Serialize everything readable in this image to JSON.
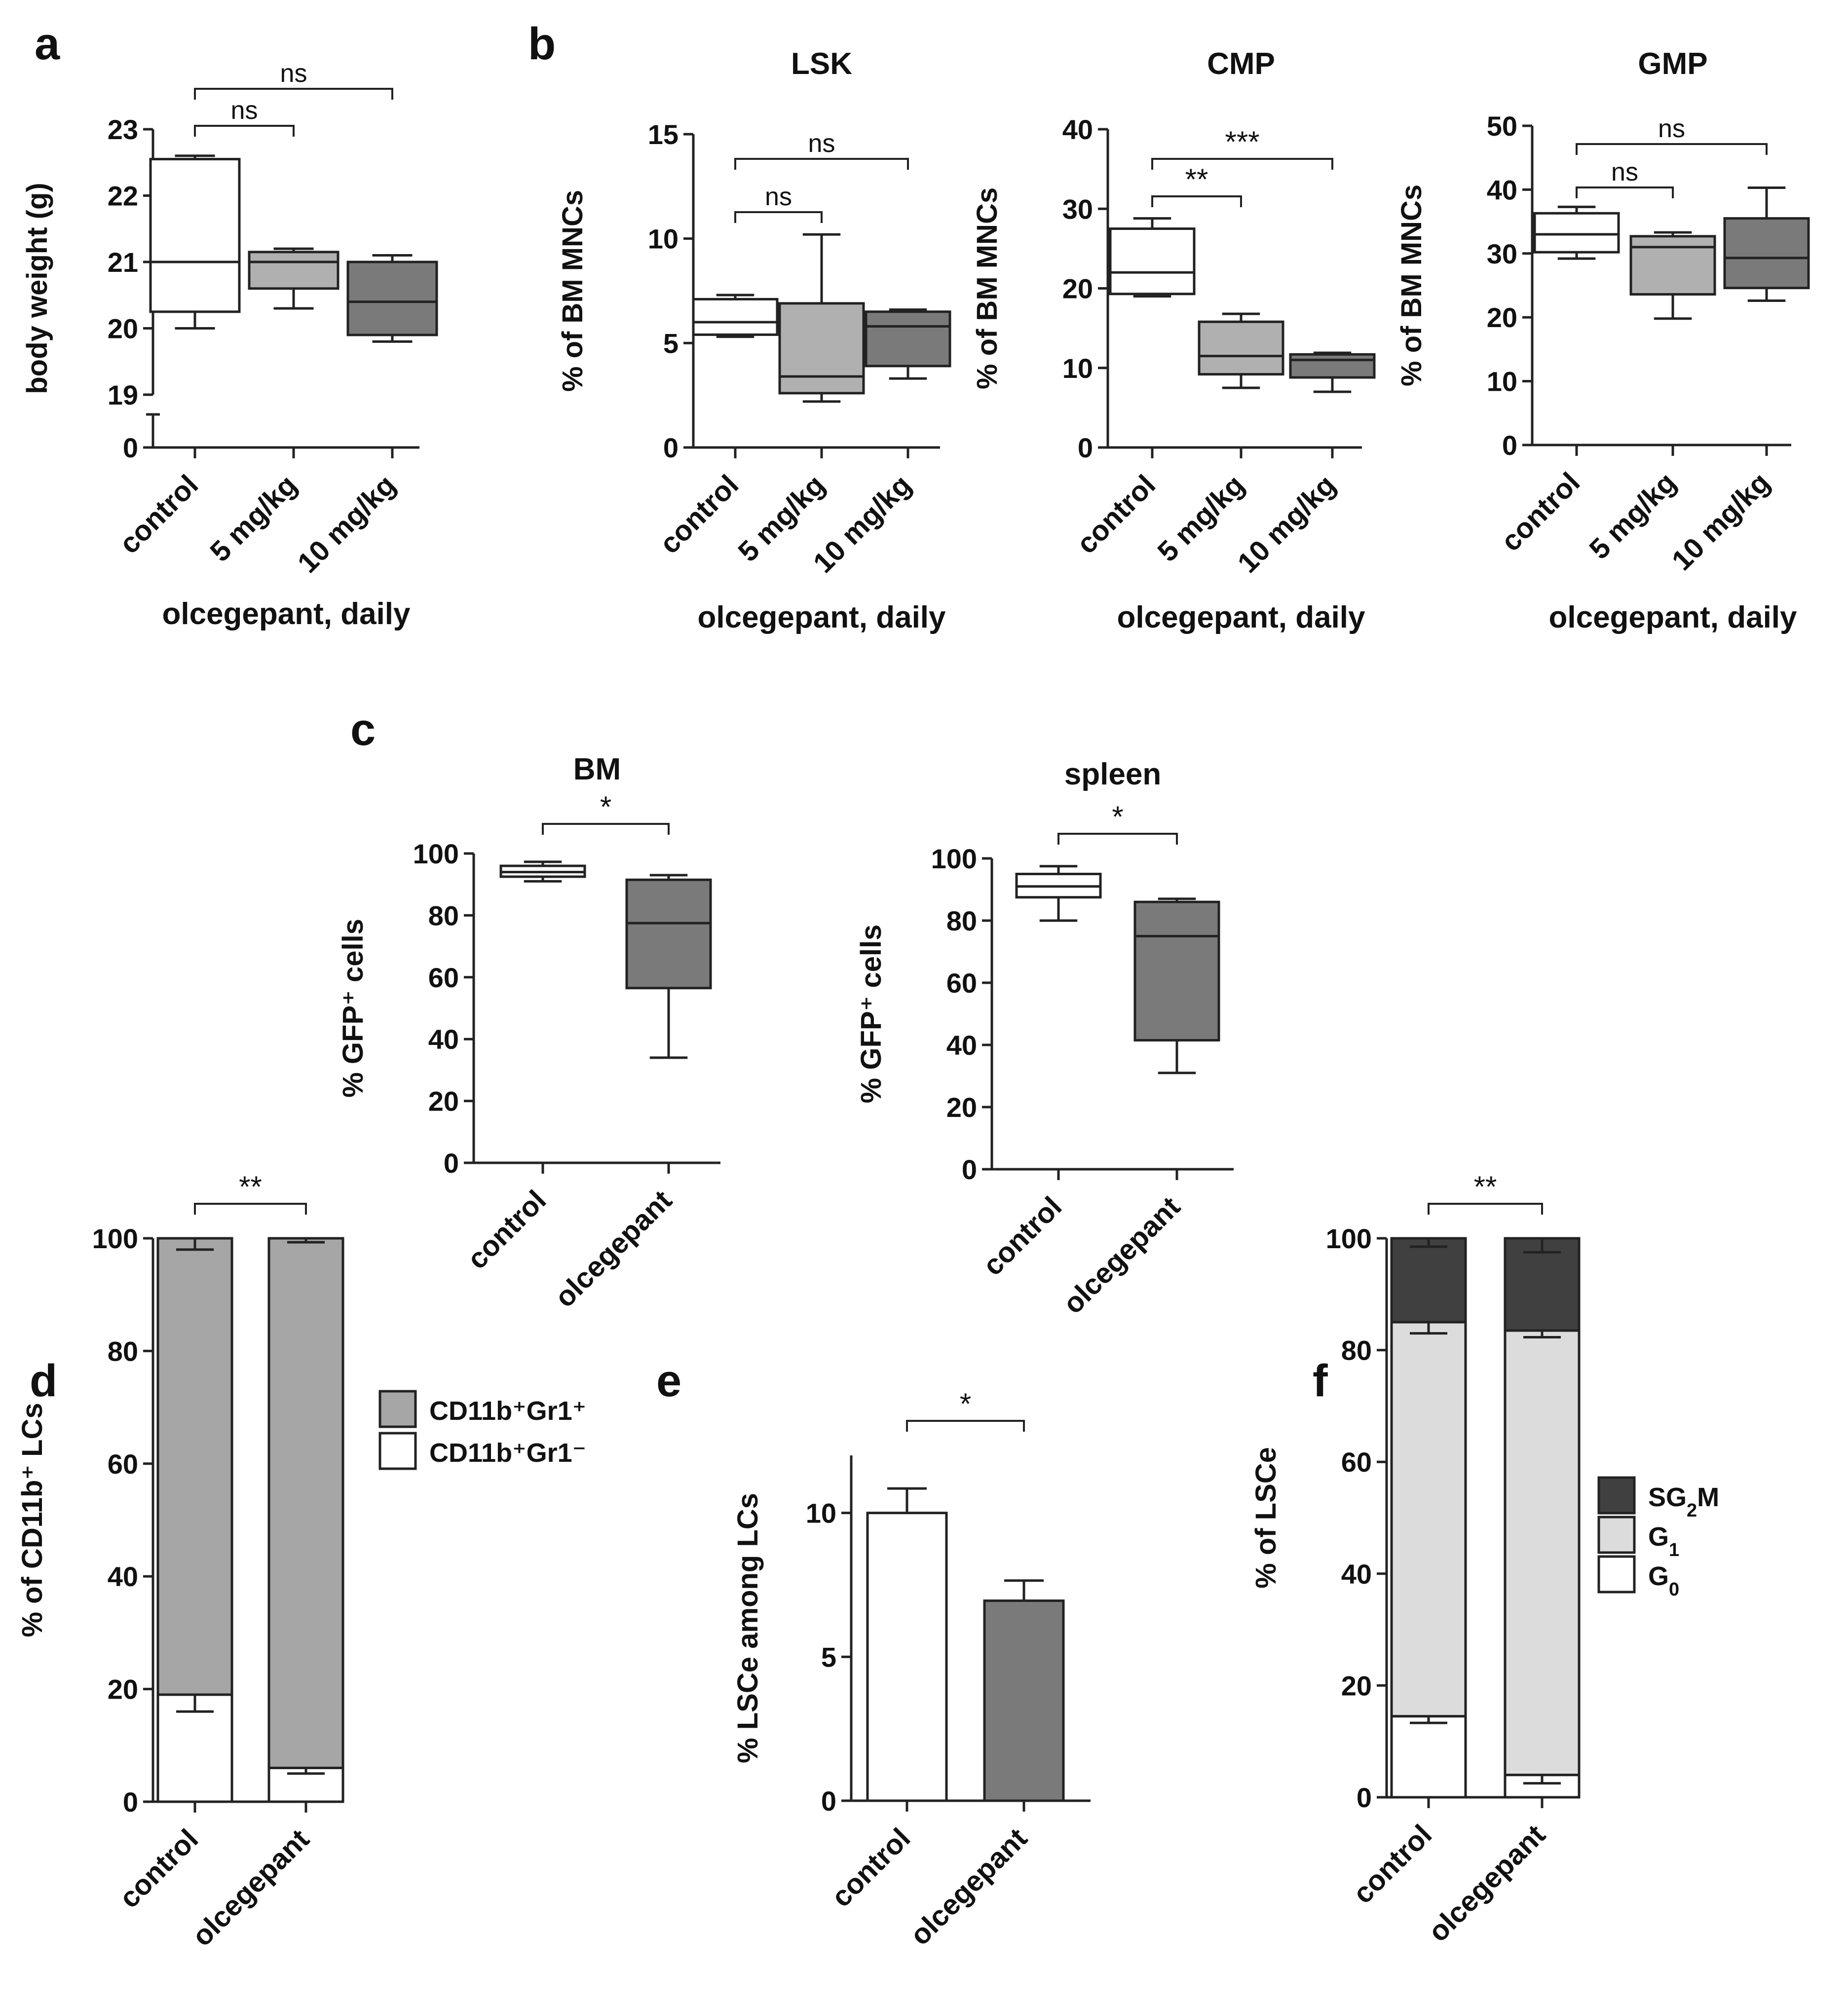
{
  "colors": {
    "control": "#ffffff",
    "dose5": "#b0b0b0",
    "dose10": "#7a7a7a",
    "olcegepant": "#7a7a7a",
    "gr1pos": "#a6a6a6",
    "gr1neg": "#ffffff",
    "sg2m": "#404040",
    "g1": "#dcdcdc",
    "g0": "#ffffff"
  },
  "chart_data": [
    {
      "panel": "a",
      "type": "box",
      "title": "",
      "ylabel": "body weight (g)",
      "xlabel": "olcegepant, daily",
      "categories": [
        "control",
        "5 mg/kg",
        "10 mg/kg"
      ],
      "axis_break": true,
      "yticks": [
        "0",
        "19",
        "20",
        "21",
        "22",
        "23"
      ],
      "ylim": [
        19,
        23
      ],
      "boxes": [
        {
          "min": 20.0,
          "q1": 20.25,
          "median": 21.0,
          "q3": 22.55,
          "max": 22.6,
          "color": "control"
        },
        {
          "min": 20.3,
          "q1": 20.6,
          "median": 21.0,
          "q3": 21.15,
          "max": 21.2,
          "color": "dose5"
        },
        {
          "min": 19.8,
          "q1": 19.9,
          "median": 20.4,
          "q3": 21.0,
          "max": 21.1,
          "color": "dose10"
        }
      ],
      "significance": [
        {
          "from": 0,
          "to": 1,
          "label": "ns"
        },
        {
          "from": 0,
          "to": 2,
          "label": "ns"
        }
      ]
    },
    {
      "panel": "b",
      "type": "box",
      "title": "LSK",
      "ylabel": "% of BM MNCs",
      "xlabel": "olcegepant, daily",
      "categories": [
        "control",
        "5 mg/kg",
        "10 mg/kg"
      ],
      "yticks": [
        "0",
        "5",
        "10",
        "15"
      ],
      "ylim": [
        0,
        15
      ],
      "boxes": [
        {
          "min": 5.3,
          "q1": 5.4,
          "median": 6.0,
          "q3": 7.1,
          "max": 7.3,
          "color": "control"
        },
        {
          "min": 2.2,
          "q1": 2.6,
          "median": 3.4,
          "q3": 6.9,
          "max": 10.2,
          "color": "dose5"
        },
        {
          "min": 3.3,
          "q1": 3.9,
          "median": 5.8,
          "q3": 6.5,
          "max": 6.6,
          "color": "dose10"
        }
      ],
      "significance": [
        {
          "from": 0,
          "to": 1,
          "label": "ns"
        },
        {
          "from": 0,
          "to": 2,
          "label": "ns"
        }
      ]
    },
    {
      "panel": "b",
      "type": "box",
      "title": "CMP",
      "ylabel": "% of BM MNCs",
      "xlabel": "olcegepant, daily",
      "categories": [
        "control",
        "5 mg/kg",
        "10 mg/kg"
      ],
      "yticks": [
        "0",
        "10",
        "20",
        "30",
        "40"
      ],
      "ylim": [
        0,
        40
      ],
      "boxes": [
        {
          "min": 19.0,
          "q1": 19.3,
          "median": 22.0,
          "q3": 27.5,
          "max": 28.8,
          "color": "control"
        },
        {
          "min": 7.5,
          "q1": 9.2,
          "median": 11.5,
          "q3": 15.8,
          "max": 16.8,
          "color": "dose5"
        },
        {
          "min": 7.0,
          "q1": 8.8,
          "median": 11.0,
          "q3": 11.7,
          "max": 11.9,
          "color": "dose10"
        }
      ],
      "significance": [
        {
          "from": 0,
          "to": 1,
          "label": "**"
        },
        {
          "from": 0,
          "to": 2,
          "label": "***"
        }
      ]
    },
    {
      "panel": "b",
      "type": "box",
      "title": "GMP",
      "ylabel": "% of BM MNCs",
      "xlabel": "olcegepant, daily",
      "categories": [
        "control",
        "5 mg/kg",
        "10 mg/kg"
      ],
      "yticks": [
        "0",
        "10",
        "20",
        "30",
        "40",
        "50"
      ],
      "ylim": [
        0,
        50
      ],
      "boxes": [
        {
          "min": 29.2,
          "q1": 30.2,
          "median": 33.0,
          "q3": 36.3,
          "max": 37.3,
          "color": "control"
        },
        {
          "min": 19.8,
          "q1": 23.6,
          "median": 31.0,
          "q3": 32.7,
          "max": 33.3,
          "color": "dose5"
        },
        {
          "min": 22.6,
          "q1": 24.6,
          "median": 29.3,
          "q3": 35.5,
          "max": 40.3,
          "color": "dose10"
        }
      ],
      "significance": [
        {
          "from": 0,
          "to": 1,
          "label": "ns"
        },
        {
          "from": 0,
          "to": 2,
          "label": "ns"
        }
      ]
    },
    {
      "panel": "c",
      "type": "box",
      "title": "BM",
      "ylabel": "% GFP⁺ cells",
      "xlabel": "",
      "categories": [
        "control",
        "olcegepant"
      ],
      "yticks": [
        "0",
        "20",
        "40",
        "60",
        "80",
        "100"
      ],
      "ylim": [
        0,
        100
      ],
      "boxes": [
        {
          "min": 91.0,
          "q1": 92.5,
          "median": 94.0,
          "q3": 96.0,
          "max": 97.3,
          "color": "control"
        },
        {
          "min": 34.0,
          "q1": 56.5,
          "median": 77.5,
          "q3": 91.5,
          "max": 93.0,
          "color": "olcegepant"
        }
      ],
      "significance": [
        {
          "from": 0,
          "to": 1,
          "label": "*"
        }
      ]
    },
    {
      "panel": "c",
      "type": "box",
      "title": "spleen",
      "ylabel": "% GFP⁺ cells",
      "xlabel": "",
      "categories": [
        "control",
        "olcegepant"
      ],
      "yticks": [
        "0",
        "20",
        "40",
        "60",
        "80",
        "100"
      ],
      "ylim": [
        0,
        100
      ],
      "boxes": [
        {
          "min": 80.0,
          "q1": 87.5,
          "median": 91.0,
          "q3": 95.0,
          "max": 97.5,
          "color": "control"
        },
        {
          "min": 31.0,
          "q1": 41.5,
          "median": 75.0,
          "q3": 86.0,
          "max": 87.0,
          "color": "olcegepant"
        }
      ],
      "significance": [
        {
          "from": 0,
          "to": 1,
          "label": "*"
        }
      ]
    },
    {
      "panel": "d",
      "type": "stacked_bar",
      "title": "",
      "ylabel": "% of CD11b⁺ LCs",
      "xlabel": "",
      "categories": [
        "control",
        "olcegepant"
      ],
      "yticks": [
        "0",
        "20",
        "40",
        "60",
        "80",
        "100"
      ],
      "ylim": [
        0,
        100
      ],
      "series": [
        {
          "name": "CD11b⁺Gr1⁻",
          "color": "gr1neg",
          "values": [
            19,
            6
          ],
          "errors": [
            3,
            1
          ]
        },
        {
          "name": "CD11b⁺Gr1⁺",
          "color": "gr1pos",
          "values": [
            81,
            94
          ],
          "errors": [
            2,
            0.7
          ]
        }
      ],
      "legend": [
        {
          "name": "CD11b⁺Gr1⁺",
          "color": "gr1pos"
        },
        {
          "name": "CD11b⁺Gr1⁻",
          "color": "gr1neg"
        }
      ],
      "significance": [
        {
          "from": 0,
          "to": 1,
          "label": "**"
        }
      ]
    },
    {
      "panel": "e",
      "type": "bar",
      "title": "",
      "ylabel": "% LSCe among LCs",
      "xlabel": "",
      "categories": [
        "control",
        "olcegepant"
      ],
      "yticks": [
        "0",
        "5",
        "10"
      ],
      "ylim": [
        0,
        12
      ],
      "values": [
        10.0,
        6.95
      ],
      "errors": [
        0.85,
        0.7
      ],
      "colors": [
        "control",
        "olcegepant"
      ],
      "significance": [
        {
          "from": 0,
          "to": 1,
          "label": "*"
        }
      ]
    },
    {
      "panel": "f",
      "type": "stacked_bar",
      "title": "",
      "ylabel": "% of LSCe",
      "xlabel": "",
      "categories": [
        "control",
        "olcegepant"
      ],
      "yticks": [
        "0",
        "20",
        "40",
        "60",
        "80",
        "100"
      ],
      "ylim": [
        0,
        100
      ],
      "series": [
        {
          "name": "G0",
          "color": "g0",
          "values": [
            14.5,
            4.0
          ],
          "errors": [
            1.2,
            1.5
          ]
        },
        {
          "name": "G1",
          "color": "g1",
          "values": [
            70.5,
            79.5
          ],
          "errors": [
            2.0,
            1.2
          ]
        },
        {
          "name": "SG2M",
          "color": "sg2m",
          "values": [
            15.0,
            16.5
          ],
          "errors": [
            1.5,
            2.5
          ]
        }
      ],
      "legend": [
        {
          "name": "SG2M",
          "color": "sg2m"
        },
        {
          "name": "G1",
          "color": "g1"
        },
        {
          "name": "G0",
          "color": "g0"
        }
      ],
      "significance": [
        {
          "from": 0,
          "to": 1,
          "label": "**"
        }
      ]
    }
  ],
  "panel_letters": [
    "a",
    "b",
    "c",
    "d",
    "e",
    "f"
  ]
}
